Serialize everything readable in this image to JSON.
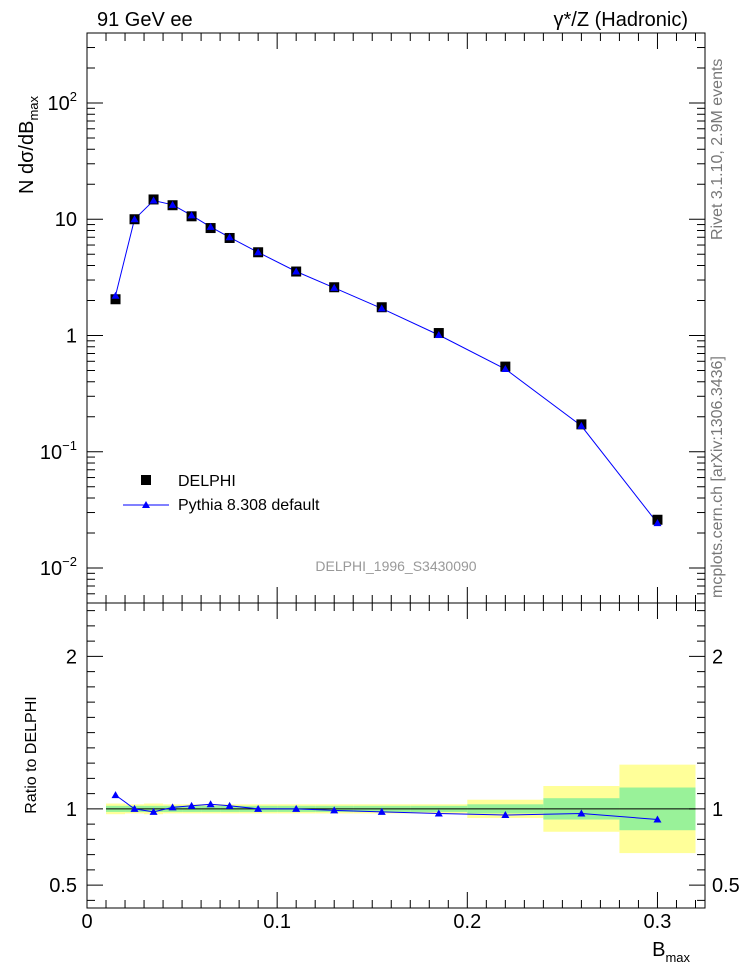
{
  "header": {
    "left": "91 GeV ee",
    "right": "γ*/Z (Hadronic)"
  },
  "side_labels": {
    "rivet": "Rivet 3.1.10, 2.9M events",
    "mcplots": "mcplots.cern.ch [arXiv:1306.3436]"
  },
  "watermark": "DELPHI_1996_S3430090",
  "colors": {
    "data": "#000000",
    "mc": "#0000ff",
    "band_inner": "#99f299",
    "band_outer": "#ffff99"
  },
  "chart_data": [
    {
      "type": "scatter",
      "panel": "main",
      "ylabel": "N dσ/dB_max",
      "yscale": "log",
      "ylim": [
        0.005,
        400
      ],
      "xlim": [
        0,
        0.325
      ],
      "yticks": [
        {
          "value": 100,
          "base": "10",
          "exp": "2"
        },
        {
          "value": 10,
          "base": "10",
          "exp": ""
        },
        {
          "value": 1,
          "base": "1",
          "exp": ""
        },
        {
          "value": 0.1,
          "base": "10",
          "exp": "−1"
        },
        {
          "value": 0.01,
          "base": "10",
          "exp": "−2"
        }
      ],
      "legend": {
        "position": "bottom-left",
        "entries": [
          "DELPHI",
          "Pythia 8.308 default"
        ]
      },
      "series": [
        {
          "name": "DELPHI",
          "marker": "square",
          "x": [
            0.015,
            0.025,
            0.035,
            0.045,
            0.055,
            0.065,
            0.075,
            0.09,
            0.11,
            0.13,
            0.155,
            0.185,
            0.22,
            0.26,
            0.3
          ],
          "y": [
            2.05,
            10.0,
            14.8,
            13.2,
            10.6,
            8.4,
            6.9,
            5.2,
            3.55,
            2.6,
            1.75,
            1.05,
            0.54,
            0.172,
            0.026
          ]
        },
        {
          "name": "Pythia 8.308 default",
          "marker": "triangle",
          "x": [
            0.015,
            0.025,
            0.035,
            0.045,
            0.055,
            0.065,
            0.075,
            0.09,
            0.11,
            0.13,
            0.155,
            0.185,
            0.22,
            0.26,
            0.3
          ],
          "y": [
            2.2,
            10.0,
            14.5,
            13.3,
            10.8,
            8.6,
            7.0,
            5.2,
            3.55,
            2.57,
            1.71,
            1.01,
            0.515,
            0.167,
            0.0243
          ]
        }
      ]
    },
    {
      "type": "line",
      "panel": "ratio",
      "ylabel": "Ratio to DELPHI",
      "xlabel": "B_max",
      "ylim": [
        0.35,
        2.35
      ],
      "xlim": [
        0,
        0.325
      ],
      "yticks": [
        {
          "value": 2,
          "label": "2"
        },
        {
          "value": 1,
          "label": "1"
        },
        {
          "value": 0.5,
          "label": "0.5"
        }
      ],
      "xticks": [
        {
          "value": 0,
          "label": "0"
        },
        {
          "value": 0.1,
          "label": "0.1"
        },
        {
          "value": 0.2,
          "label": "0.2"
        },
        {
          "value": 0.3,
          "label": "0.3"
        }
      ],
      "bins": [
        {
          "lo": 0.01,
          "hi": 0.02,
          "inner": 0.02,
          "outer": 0.035
        },
        {
          "lo": 0.02,
          "hi": 0.03,
          "inner": 0.02,
          "outer": 0.03
        },
        {
          "lo": 0.03,
          "hi": 0.04,
          "inner": 0.02,
          "outer": 0.035
        },
        {
          "lo": 0.04,
          "hi": 0.05,
          "inner": 0.02,
          "outer": 0.03
        },
        {
          "lo": 0.05,
          "hi": 0.06,
          "inner": 0.02,
          "outer": 0.03
        },
        {
          "lo": 0.06,
          "hi": 0.07,
          "inner": 0.02,
          "outer": 0.03
        },
        {
          "lo": 0.07,
          "hi": 0.08,
          "inner": 0.02,
          "outer": 0.03
        },
        {
          "lo": 0.08,
          "hi": 0.1,
          "inner": 0.02,
          "outer": 0.03
        },
        {
          "lo": 0.1,
          "hi": 0.12,
          "inner": 0.02,
          "outer": 0.03
        },
        {
          "lo": 0.12,
          "hi": 0.14,
          "inner": 0.02,
          "outer": 0.03
        },
        {
          "lo": 0.14,
          "hi": 0.17,
          "inner": 0.02,
          "outer": 0.03
        },
        {
          "lo": 0.17,
          "hi": 0.2,
          "inner": 0.02,
          "outer": 0.03
        },
        {
          "lo": 0.2,
          "hi": 0.24,
          "inner": 0.03,
          "outer": 0.06
        },
        {
          "lo": 0.24,
          "hi": 0.28,
          "inner": 0.07,
          "outer": 0.15
        },
        {
          "lo": 0.28,
          "hi": 0.32,
          "inner": 0.14,
          "outer": 0.29
        }
      ],
      "series": [
        {
          "name": "Pythia 8.308 default",
          "x": [
            0.015,
            0.025,
            0.035,
            0.045,
            0.055,
            0.065,
            0.075,
            0.09,
            0.11,
            0.13,
            0.155,
            0.185,
            0.22,
            0.26,
            0.3
          ],
          "y": [
            1.09,
            1.0,
            0.98,
            1.01,
            1.02,
            1.03,
            1.02,
            1.0,
            1.0,
            0.99,
            0.98,
            0.97,
            0.96,
            0.97,
            0.93
          ]
        }
      ]
    }
  ]
}
